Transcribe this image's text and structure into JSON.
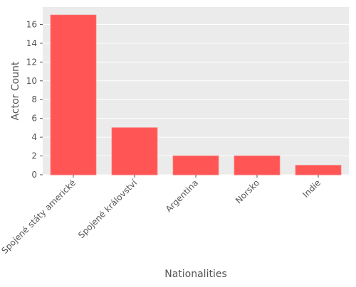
{
  "chart_data": {
    "type": "bar",
    "title": "",
    "xlabel": "Nationalities",
    "ylabel": "Actor Count",
    "categories": [
      "Spojené státy americké",
      "Spojené království",
      "Argentina",
      "Norsko",
      "Indie"
    ],
    "values": [
      17,
      5,
      2,
      2,
      1
    ],
    "ylim": [
      0,
      17.85
    ],
    "yticks": [
      0,
      2,
      4,
      6,
      8,
      10,
      12,
      14,
      16
    ],
    "grid": true,
    "legend": "none",
    "colors": {
      "bar": "#ff5555",
      "bar_edge": "#ff6b6b",
      "plot_background": "#ebebeb",
      "grid": "#ffffff",
      "text": "#555555"
    }
  }
}
